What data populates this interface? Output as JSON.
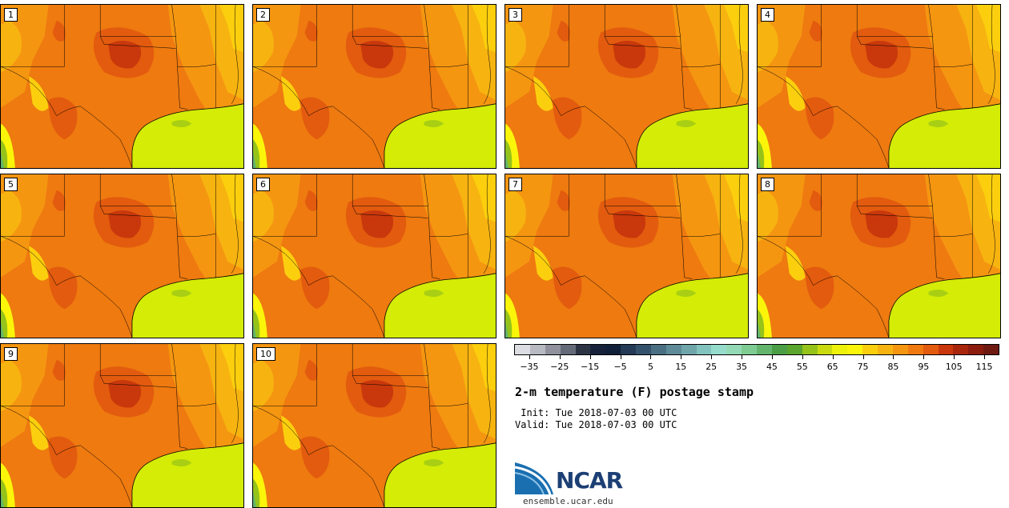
{
  "panels": [
    {
      "label": "1"
    },
    {
      "label": "2"
    },
    {
      "label": "3"
    },
    {
      "label": "4"
    },
    {
      "label": "5"
    },
    {
      "label": "6"
    },
    {
      "label": "7"
    },
    {
      "label": "8"
    },
    {
      "label": "9"
    },
    {
      "label": "10"
    }
  ],
  "colorbar": {
    "colors": [
      "#dcdde2",
      "#b8bac1",
      "#8f929c",
      "#646a77",
      "#2c3444",
      "#17223a",
      "#0f2038",
      "#243a55",
      "#34526b",
      "#4a6f82",
      "#5e8b97",
      "#70a5aa",
      "#83c3bf",
      "#96dccc",
      "#93d9b5",
      "#7fcc92",
      "#63b56d",
      "#4b9e45",
      "#5ba42d",
      "#96c31a",
      "#c9db0f",
      "#eef20a",
      "#fbf50a",
      "#fccf0e",
      "#f7b410",
      "#f59611",
      "#f07a10",
      "#e35b0e",
      "#c9380c",
      "#a8260b",
      "#8c1d0e",
      "#6e1a10"
    ],
    "tick_labels": [
      "−35",
      "−25",
      "−15",
      "−5",
      "5",
      "15",
      "25",
      "35",
      "45",
      "55",
      "65",
      "75",
      "85",
      "95",
      "105",
      "115"
    ],
    "range": [
      -40,
      120
    ]
  },
  "map_colors": {
    "base": "#ee7a10",
    "hot": "#e35b0e",
    "hotter": "#c9380c",
    "warm": "#f59611",
    "mild": "#f7b410",
    "cool": "#fccf0e",
    "yellow": "#fbf50a",
    "gulf": "#d4ec06",
    "green": "#96c31a",
    "dkgreen": "#63b56d"
  },
  "title": "2-m temperature (F) postage stamp",
  "init_line": " Init: Tue 2018-07-03 00 UTC",
  "valid_line": "Valid: Tue 2018-07-03 00 UTC",
  "logo_text": "NCAR",
  "site": "ensemble.ucar.edu"
}
